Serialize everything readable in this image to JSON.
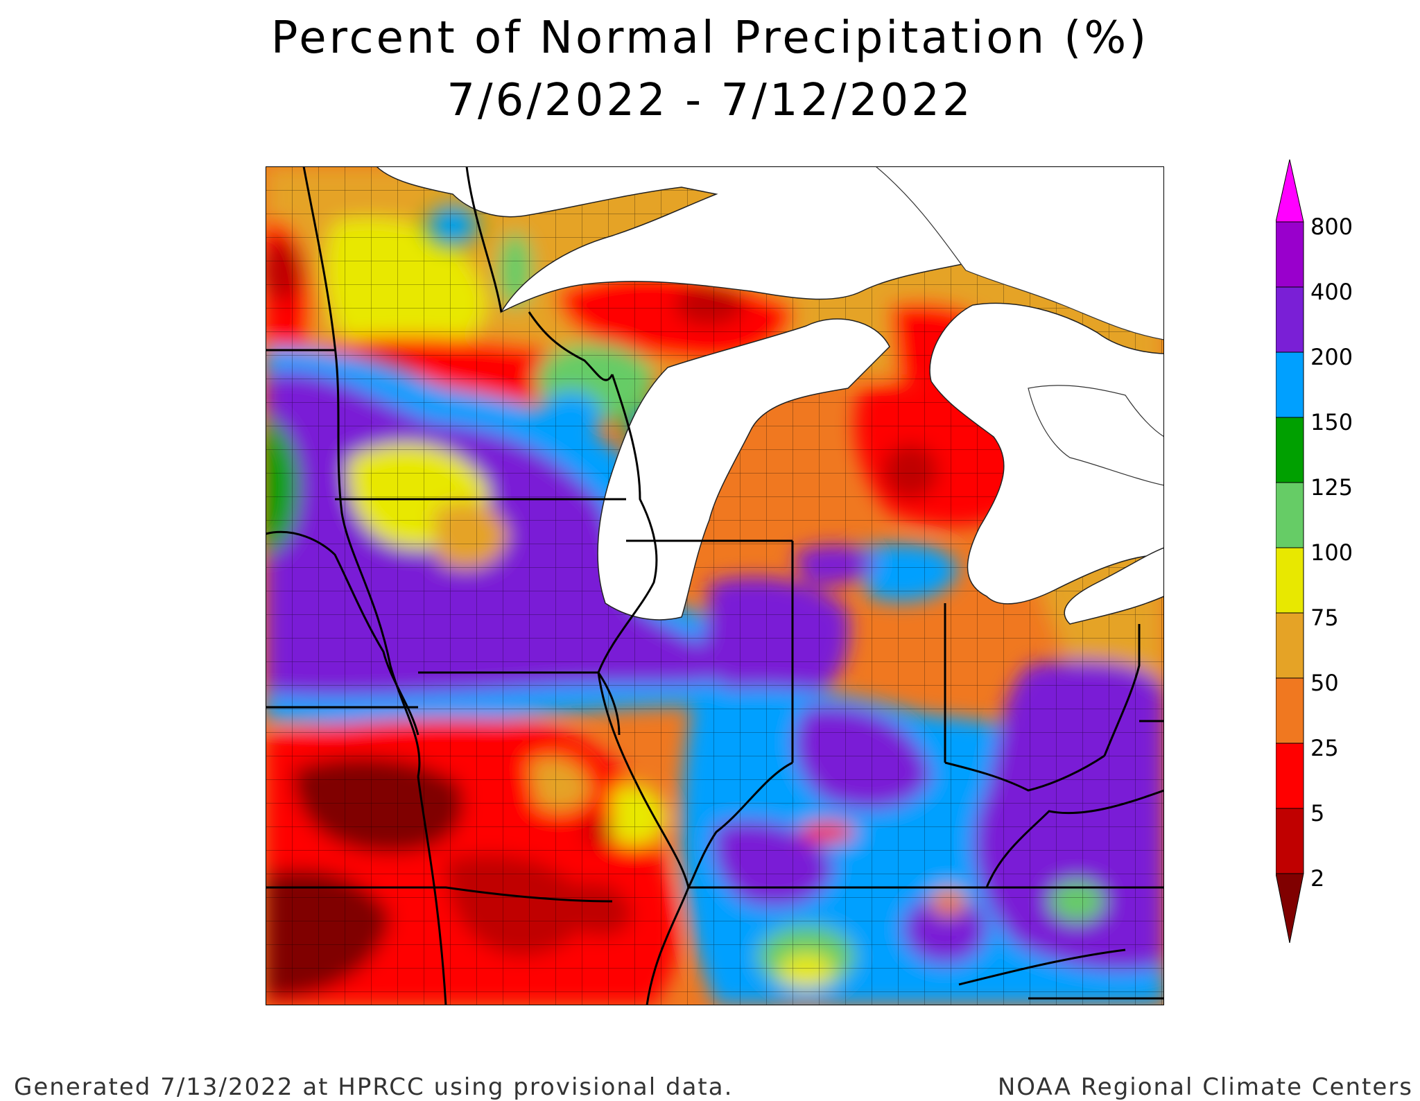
{
  "title": {
    "line1": "Percent of Normal Precipitation (%)",
    "line2": "7/6/2022 - 7/12/2022"
  },
  "legend": {
    "labels": [
      "800",
      "400",
      "200",
      "150",
      "125",
      "100",
      "75",
      "50",
      "25",
      "5",
      "2"
    ],
    "colors": {
      "over_800": "#ff00ff",
      "400_800": "#9900cc",
      "200_400": "#7a1fd6",
      "150_200": "#00a0ff",
      "125_150": "#00a000",
      "100_125": "#66cc66",
      "75_100": "#e8e800",
      "50_75": "#e5a326",
      "25_50": "#f07820",
      "5_25": "#ff0000",
      "2_5": "#c00000",
      "under_2": "#800000"
    }
  },
  "footer": {
    "left": "Generated 7/13/2022 at HPRCC using provisional data.",
    "right": "NOAA Regional Climate Centers"
  }
}
